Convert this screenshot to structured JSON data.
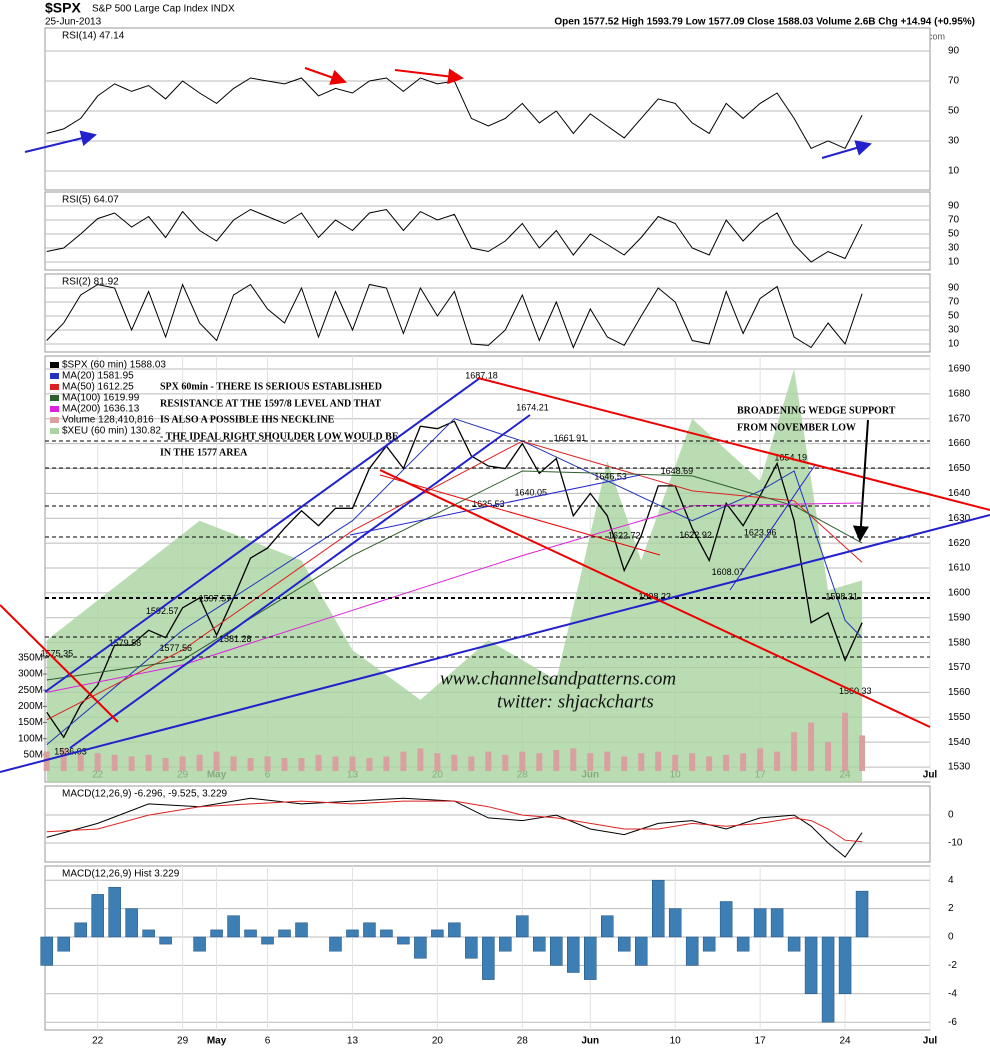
{
  "header": {
    "symbol": "$SPX",
    "name": "S&P 500 Large Cap Index INDX",
    "date": "25-Jun-2013",
    "quote": "Open 1577.52 High 1593.79 Low 1577.09 Close 1588.03 Volume 2.6B Chg +14.94 (+0.95%)",
    "credit": "© StockCharts.com"
  },
  "annotations": {
    "note": [
      "SPX 60min - THERE IS SERIOUS ESTABLISHED",
      "RESISTANCE AT THE 1597/8 LEVEL AND THAT",
      "IS ALSO A POSSIBLE IHS NECKLINE",
      "- THE IDEAL RIGHT SHOULDER LOW WOULD BE",
      "IN THE 1577 AREA"
    ],
    "wedge": [
      "BROADENING WEDGE SUPPORT",
      "FROM NOVEMBER LOW"
    ],
    "site": "www.channelsandpatterns.com",
    "twitter": "twitter: shjackcharts"
  },
  "chart_data": [
    {
      "type": "line",
      "title": "RSI(14) 47.14",
      "x": [
        -3,
        -2,
        -1,
        0,
        1,
        2,
        3,
        4,
        5,
        6,
        7,
        8,
        9,
        10,
        11,
        12,
        13,
        14,
        15,
        16,
        17,
        18,
        19,
        20,
        21,
        22,
        23,
        24,
        25,
        26,
        27,
        28,
        29,
        30,
        31,
        32,
        33,
        34,
        35,
        36,
        37,
        38,
        39,
        40,
        41,
        42,
        43,
        44,
        45
      ],
      "series": [
        {
          "color": "#000000",
          "values": [
            35,
            38,
            45,
            60,
            68,
            63,
            67,
            58,
            70,
            62,
            55,
            65,
            72,
            70,
            68,
            72,
            60,
            65,
            62,
            70,
            72,
            63,
            72,
            68,
            70,
            45,
            40,
            45,
            55,
            42,
            50,
            35,
            48,
            40,
            32,
            45,
            58,
            55,
            42,
            35,
            55,
            45,
            55,
            62,
            45,
            25,
            30,
            25,
            47.14
          ]
        }
      ],
      "xlim": [
        -3.1,
        49
      ],
      "ylim": [
        -2.7,
        105.3
      ],
      "yticks": [
        10,
        30,
        50,
        70,
        90
      ],
      "grid": true
    },
    {
      "type": "line",
      "title": "RSI(5) 64.07",
      "x": [
        -3,
        -2,
        -1,
        0,
        1,
        2,
        3,
        4,
        5,
        6,
        7,
        8,
        9,
        10,
        11,
        12,
        13,
        14,
        15,
        16,
        17,
        18,
        19,
        20,
        21,
        22,
        23,
        24,
        25,
        26,
        27,
        28,
        29,
        30,
        31,
        32,
        33,
        34,
        35,
        36,
        37,
        38,
        39,
        40,
        41,
        42,
        43,
        44,
        45
      ],
      "series": [
        {
          "color": "#000000",
          "values": [
            25,
            30,
            50,
            72,
            80,
            60,
            75,
            45,
            82,
            55,
            40,
            70,
            85,
            75,
            65,
            80,
            45,
            70,
            55,
            80,
            85,
            55,
            82,
            70,
            78,
            30,
            25,
            40,
            65,
            30,
            55,
            20,
            50,
            35,
            20,
            45,
            75,
            65,
            30,
            20,
            70,
            40,
            65,
            80,
            35,
            10,
            25,
            15,
            64.07
          ]
        }
      ],
      "xlim": [
        -3.1,
        49
      ],
      "ylim": [
        -1.4,
        110
      ],
      "yticks": [
        10,
        30,
        50,
        70,
        90
      ],
      "grid": true
    },
    {
      "type": "line",
      "title": "RSI(2) 81.92",
      "x": [
        -3,
        -2,
        -1,
        0,
        1,
        2,
        3,
        4,
        5,
        6,
        7,
        8,
        9,
        10,
        11,
        12,
        13,
        14,
        15,
        16,
        17,
        18,
        19,
        20,
        21,
        22,
        23,
        24,
        25,
        26,
        27,
        28,
        29,
        30,
        31,
        32,
        33,
        34,
        35,
        36,
        37,
        38,
        39,
        40,
        41,
        42,
        43,
        44,
        45
      ],
      "series": [
        {
          "color": "#000000",
          "values": [
            15,
            40,
            80,
            95,
            90,
            30,
            85,
            20,
            95,
            40,
            15,
            80,
            95,
            60,
            40,
            90,
            20,
            85,
            30,
            95,
            90,
            25,
            90,
            50,
            85,
            10,
            8,
            30,
            80,
            15,
            70,
            5,
            60,
            20,
            8,
            50,
            90,
            70,
            15,
            10,
            85,
            25,
            75,
            92,
            20,
            5,
            40,
            10,
            81.92
          ]
        }
      ],
      "xlim": [
        -3.1,
        49
      ],
      "ylim": [
        -1.4,
        110
      ],
      "yticks": [
        10,
        30,
        50,
        70,
        90
      ],
      "grid": true
    },
    {
      "type": "line",
      "x": [
        -3,
        -2,
        -1,
        0,
        1,
        2,
        3,
        4,
        5,
        6,
        7,
        8,
        9,
        10,
        11,
        12,
        13,
        14,
        15,
        16,
        17,
        18,
        19,
        20,
        21,
        22,
        23,
        24,
        25,
        26,
        27,
        28,
        29,
        30,
        31,
        32,
        33,
        34,
        35,
        36,
        37,
        38,
        39,
        40,
        41,
        42,
        43,
        44,
        45
      ],
      "series": [
        {
          "name": "$SPX (60 min) 1588.03",
          "color": "#000000",
          "values": [
            1552,
            1542,
            1555,
            1563,
            1579,
            1579,
            1585,
            1582,
            1594,
            1598,
            1583,
            1598,
            1614,
            1618,
            1626,
            1633,
            1627,
            1634,
            1634,
            1650,
            1659,
            1650,
            1667,
            1666,
            1669,
            1655,
            1651,
            1650,
            1660,
            1648,
            1654,
            1631,
            1640,
            1631,
            1609,
            1623,
            1643,
            1643,
            1626,
            1613,
            1636,
            1627,
            1639,
            1652,
            1629,
            1588,
            1592,
            1573,
            1588.03
          ]
        },
        {
          "name": "MA(20) 1581.95",
          "color": "#2233bb",
          "x": [
            -3,
            5,
            15,
            21,
            25,
            30,
            35,
            39,
            41,
            44,
            45
          ],
          "values": [
            1539,
            1585,
            1629,
            1670,
            1661,
            1645,
            1629,
            1641,
            1649,
            1589,
            1581.95
          ]
        },
        {
          "name": "MA(50) 1612.25",
          "color": "#dd2222",
          "x": [
            -3,
            5,
            15,
            25,
            35,
            41,
            45
          ],
          "values": [
            1549,
            1577,
            1625,
            1661,
            1641,
            1637,
            1612.25
          ]
        },
        {
          "name": "MA(100) 1619.99",
          "color": "#2e5e2e",
          "x": [
            -3,
            5,
            15,
            25,
            35,
            41,
            45
          ],
          "values": [
            1565,
            1573,
            1615,
            1649,
            1647,
            1635,
            1619.99
          ]
        },
        {
          "name": "MA(200) 1636.13",
          "color": "#dd22dd",
          "x": [
            -3,
            5,
            15,
            25,
            35,
            45
          ],
          "values": [
            1560,
            1571,
            1593,
            1615,
            1635,
            1636.13
          ]
        },
        {
          "name": "Volume 128,410,816",
          "type": "bar",
          "axis": "y2",
          "color": "#d9a0a0",
          "values": [
            60,
            70,
            50,
            55,
            50,
            45,
            50,
            40,
            45,
            50,
            60,
            45,
            40,
            45,
            40,
            40,
            50,
            45,
            45,
            40,
            45,
            60,
            70,
            55,
            50,
            45,
            60,
            50,
            60,
            55,
            65,
            70,
            55,
            60,
            45,
            55,
            60,
            50,
            55,
            45,
            50,
            55,
            70,
            60,
            120,
            150,
            90,
            180,
            110
          ]
        },
        {
          "name": "$XEU (60 min) 130.82",
          "type": "area",
          "color": "#a9d3a0",
          "x": [
            -3,
            0,
            6,
            12,
            15,
            19,
            23,
            27,
            30,
            32,
            35,
            39,
            41,
            43,
            45
          ],
          "values": [
            1581,
            1597,
            1629,
            1613,
            1577,
            1557,
            1581,
            1565,
            1653,
            1613,
            1670,
            1645,
            1690,
            1601,
            1605
          ]
        }
      ],
      "point_labels": [
        {
          "x": 22.6,
          "y": 1687.18
        },
        {
          "x": 25.6,
          "y": 1674.21
        },
        {
          "x": 27.8,
          "y": 1661.91
        },
        {
          "x": 30.2,
          "y": 1646.53
        },
        {
          "x": 34.1,
          "y": 1648.69
        },
        {
          "x": 40.8,
          "y": 1654.19
        },
        {
          "x": 25.5,
          "y": 1640.05
        },
        {
          "x": 23,
          "y": 1635.53
        },
        {
          "x": 31,
          "y": 1622.72
        },
        {
          "x": 35.2,
          "y": 1622.92
        },
        {
          "x": 39,
          "y": 1623.96
        },
        {
          "x": 37.1,
          "y": 1608.07
        },
        {
          "x": 32.8,
          "y": 1598.23
        },
        {
          "x": 43.8,
          "y": 1598.31
        },
        {
          "x": 44.6,
          "y": 1560.33
        },
        {
          "x": 6.9,
          "y": 1597.57
        },
        {
          "x": 3.8,
          "y": 1592.57
        },
        {
          "x": 1.6,
          "y": 1579.58
        },
        {
          "x": 4.6,
          "y": 1577.56
        },
        {
          "x": 8.1,
          "y": 1581.28
        },
        {
          "x": -2.4,
          "y": 1575.35
        },
        {
          "x": -1.6,
          "y": 1536.03
        }
      ],
      "xlim": [
        -3.1,
        49
      ],
      "ylim": [
        1524,
        1695.2
      ],
      "yticks": [
        1530,
        1540,
        1550,
        1560,
        1570,
        1580,
        1590,
        1600,
        1610,
        1620,
        1630,
        1640,
        1650,
        1660,
        1670,
        1680,
        1690
      ],
      "y2lim": [
        -34,
        1284
      ],
      "y2ticks": [
        {
          "value": 50,
          "label": "50M"
        },
        {
          "value": 100,
          "label": "100M"
        },
        {
          "value": 150,
          "label": "150M"
        },
        {
          "value": 200,
          "label": "200M"
        },
        {
          "value": 250,
          "label": "250M"
        },
        {
          "value": 300,
          "label": "300M"
        },
        {
          "value": 350,
          "label": "350M"
        }
      ],
      "xticks": [
        {
          "value": 0,
          "label": "22"
        },
        {
          "value": 5,
          "label": "29"
        },
        {
          "value": 7,
          "label": "May"
        },
        {
          "value": 10,
          "label": "6"
        },
        {
          "value": 15,
          "label": "13"
        },
        {
          "value": 20,
          "label": "20"
        },
        {
          "value": 25,
          "label": "28"
        },
        {
          "value": 29,
          "label": "Jun"
        },
        {
          "value": 34,
          "label": "10"
        },
        {
          "value": 39,
          "label": "17"
        },
        {
          "value": 44,
          "label": "24"
        },
        {
          "value": 49,
          "label": "Jul"
        }
      ],
      "grid": true
    },
    {
      "type": "line",
      "title": "MACD(12,26,9) -6.296, -9.525, 3.229",
      "x": [
        -3,
        0,
        3,
        6,
        9,
        12,
        15,
        18,
        21,
        23,
        25,
        27,
        29,
        31,
        33,
        35,
        37,
        39,
        41,
        42,
        43,
        44,
        45
      ],
      "series": [
        {
          "color": "#000000",
          "values": [
            -8,
            -3,
            4,
            3,
            6,
            4,
            5,
            6,
            5,
            -1,
            -2,
            0,
            -5,
            -7,
            -3,
            -2,
            -5,
            -1,
            0,
            -4,
            -10,
            -15,
            -6.296
          ]
        },
        {
          "color": "#dd2222",
          "values": [
            -6,
            -5,
            0,
            3,
            4,
            5,
            4,
            5,
            5,
            3,
            0,
            -1,
            -3,
            -5,
            -5,
            -3,
            -4,
            -3,
            -1,
            -2,
            -5,
            -9,
            -9.525
          ]
        }
      ],
      "xlim": [
        -3.1,
        49
      ],
      "ylim": [
        -16.8,
        10.4
      ],
      "yticks": [
        -10,
        0
      ],
      "grid": true
    },
    {
      "type": "bar",
      "title": "MACD(12,26,9) Hist 3.229",
      "x": [
        -3,
        -2,
        -1,
        0,
        1,
        2,
        3,
        4,
        5,
        6,
        7,
        8,
        9,
        10,
        11,
        12,
        13,
        14,
        15,
        16,
        17,
        18,
        19,
        20,
        21,
        22,
        23,
        24,
        25,
        26,
        27,
        28,
        29,
        30,
        31,
        32,
        33,
        34,
        35,
        36,
        37,
        38,
        39,
        40,
        41,
        42,
        43,
        44,
        45
      ],
      "values": [
        -2,
        -1,
        1,
        3,
        3.5,
        2,
        0.5,
        -0.5,
        0,
        -1,
        0.5,
        1.5,
        0.5,
        -0.5,
        0.5,
        1,
        0,
        -1,
        0.5,
        1,
        0.5,
        -0.5,
        -1.5,
        0.5,
        1,
        -1.5,
        -3,
        -1,
        1.5,
        -1,
        -2,
        -2.5,
        -3,
        1.5,
        -1,
        -2,
        4,
        2,
        -2,
        -1,
        2.5,
        -1,
        2,
        2,
        -1,
        -4,
        -6,
        -4,
        3.229
      ],
      "color": "#3d7eb5",
      "xlim": [
        -3.1,
        49
      ],
      "ylim": [
        -6.55,
        5
      ],
      "yticks": [
        -6,
        -4,
        -2,
        0,
        2,
        4
      ],
      "xticks": [
        {
          "value": 0,
          "label": "22"
        },
        {
          "value": 5,
          "label": "29"
        },
        {
          "value": 7,
          "label": "May"
        },
        {
          "value": 10,
          "label": "6"
        },
        {
          "value": 15,
          "label": "13"
        },
        {
          "value": 20,
          "label": "20"
        },
        {
          "value": 25,
          "label": "28"
        },
        {
          "value": 29,
          "label": "Jun"
        },
        {
          "value": 34,
          "label": "10"
        },
        {
          "value": 39,
          "label": "17"
        },
        {
          "value": 44,
          "label": "24"
        },
        {
          "value": 49,
          "label": "Jul"
        }
      ],
      "grid": true
    }
  ]
}
